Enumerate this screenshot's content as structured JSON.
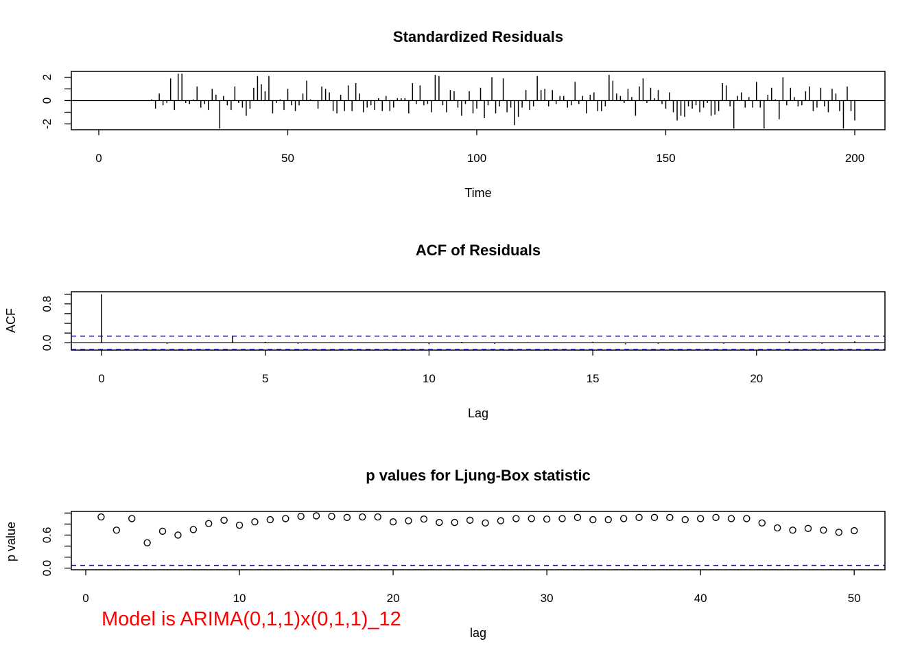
{
  "chart_data": [
    {
      "type": "bar",
      "title": "Standardized Residuals",
      "xlabel": "Time",
      "ylabel": "",
      "xlim": [
        0,
        200
      ],
      "ylim": [
        -2.5,
        2.5
      ],
      "x_ticks": [
        "0",
        "50",
        "100",
        "150",
        "200"
      ],
      "y_ticks": [
        "-2",
        "0",
        "2"
      ],
      "x_start": 0,
      "values": [
        0,
        0,
        0,
        0,
        0,
        0,
        0,
        0,
        0,
        0,
        0,
        0,
        0,
        0,
        0.1,
        -0.7,
        0.6,
        -0.4,
        -0.2,
        1.9,
        -0.8,
        2.3,
        2.3,
        -0.2,
        -0.3,
        0.1,
        1.2,
        -0.6,
        -0.3,
        -0.8,
        1.0,
        0.5,
        -2.4,
        0.4,
        -0.4,
        -0.8,
        1.2,
        -0.2,
        -0.6,
        -1.3,
        -0.7,
        1.1,
        2.1,
        1.4,
        0.8,
        2.1,
        -1.1,
        -0.2,
        0.1,
        -0.8,
        1.0,
        -0.4,
        -0.9,
        -0.4,
        0.6,
        1.7,
        0.1,
        0.0,
        -0.7,
        1.2,
        1.0,
        0.7,
        -0.9,
        -1.1,
        0.5,
        -0.9,
        1.3,
        -0.9,
        1.5,
        0.6,
        -1.0,
        -0.6,
        -0.4,
        -0.8,
        0.2,
        -0.9,
        0.4,
        -0.9,
        -0.6,
        0.2,
        0.2,
        0.2,
        -1.1,
        1.5,
        -0.3,
        1.3,
        -0.4,
        -0.3,
        -1.0,
        2.2,
        2.1,
        -0.4,
        -1.0,
        0.9,
        0.8,
        -0.6,
        -1.3,
        -0.3,
        0.8,
        -1.1,
        -0.7,
        1.1,
        -1.5,
        -0.4,
        2.0,
        -1.1,
        -0.5,
        1.9,
        -1.0,
        -0.6,
        -2.1,
        -1.4,
        -0.6,
        0.9,
        -0.8,
        -0.5,
        2.1,
        0.9,
        1.0,
        -0.5,
        0.9,
        -0.3,
        0.4,
        0.4,
        -0.6,
        -0.4,
        1.6,
        -0.3,
        0.4,
        -1.1,
        0.5,
        0.7,
        -0.9,
        -0.9,
        -0.5,
        2.2,
        1.7,
        0.6,
        0.4,
        -0.2,
        1.0,
        0.3,
        -1.3,
        1.2,
        1.9,
        -0.2,
        1.1,
        0.2,
        0.9,
        -0.3,
        -0.7,
        0.7,
        -1.0,
        -1.7,
        -1.3,
        -1.4,
        -0.5,
        -0.7,
        -0.4,
        -1.0,
        -0.6,
        -0.2,
        -1.3,
        -1.2,
        -0.9,
        1.5,
        1.3,
        -0.5,
        -2.4,
        0.4,
        0.7,
        -0.6,
        0.3,
        -0.6,
        1.6,
        -0.6,
        -2.4,
        0.5,
        1.1,
        0.1,
        -1.6,
        2.0,
        -0.4,
        1.1,
        0.3,
        -0.5,
        -0.4,
        0.8,
        1.2,
        -0.9,
        -0.6,
        1.1,
        -0.5,
        -1.0,
        1.0,
        0.6,
        -0.9,
        -2.4,
        1.2,
        -0.9,
        -1.7
      ]
    },
    {
      "type": "bar",
      "title": "ACF of Residuals",
      "xlabel": "Lag",
      "ylabel": "ACF",
      "xlim": [
        0,
        23
      ],
      "ylim": [
        -0.15,
        1.05
      ],
      "x_ticks": [
        "0",
        "5",
        "10",
        "15",
        "20"
      ],
      "y_ticks": [
        "0.0",
        "0.8"
      ],
      "confidence_bound": 0.138,
      "lags": [
        0,
        1,
        2,
        3,
        4,
        5,
        6,
        7,
        8,
        9,
        10,
        11,
        12,
        13,
        14,
        15,
        16,
        17,
        18,
        19,
        20,
        21,
        22,
        23
      ],
      "values": [
        1.0,
        -0.01,
        -0.02,
        -0.01,
        0.13,
        0.02,
        -0.02,
        0.01,
        -0.01,
        0.01,
        -0.03,
        0.02,
        -0.02,
        0.01,
        -0.01,
        0.02,
        -0.03,
        -0.02,
        0.01,
        -0.02,
        -0.01,
        0.03,
        -0.02,
        0.03
      ]
    },
    {
      "type": "scatter",
      "title": "p values for Ljung-Box statistic",
      "xlabel": "lag",
      "ylabel": "p value",
      "xlim": [
        0,
        52
      ],
      "ylim": [
        -0.03,
        1.03
      ],
      "x_ticks": [
        "0",
        "10",
        "20",
        "30",
        "40",
        "50"
      ],
      "y_ticks": [
        "0.0",
        "0.6"
      ],
      "significance_line": 0.05,
      "x": [
        1,
        2,
        3,
        4,
        5,
        6,
        7,
        8,
        9,
        10,
        11,
        12,
        13,
        14,
        15,
        16,
        17,
        18,
        19,
        20,
        21,
        22,
        23,
        24,
        25,
        26,
        27,
        28,
        29,
        30,
        31,
        32,
        33,
        34,
        35,
        36,
        37,
        38,
        39,
        40,
        41,
        42,
        43,
        44,
        45,
        46,
        47,
        48,
        49,
        50
      ],
      "y": [
        0.93,
        0.69,
        0.9,
        0.46,
        0.67,
        0.6,
        0.7,
        0.81,
        0.87,
        0.78,
        0.84,
        0.88,
        0.9,
        0.94,
        0.95,
        0.94,
        0.92,
        0.93,
        0.93,
        0.84,
        0.86,
        0.89,
        0.83,
        0.83,
        0.87,
        0.82,
        0.86,
        0.9,
        0.9,
        0.89,
        0.9,
        0.92,
        0.88,
        0.88,
        0.9,
        0.92,
        0.92,
        0.92,
        0.88,
        0.9,
        0.92,
        0.9,
        0.9,
        0.82,
        0.73,
        0.69,
        0.72,
        0.69,
        0.65,
        0.68
      ]
    }
  ],
  "annotation": "Model is ARIMA(0,1,1)x(0,1,1)_12",
  "colors": {
    "axes": "#000000",
    "confidence": "#0000ff",
    "annotation": "#ff0000"
  }
}
